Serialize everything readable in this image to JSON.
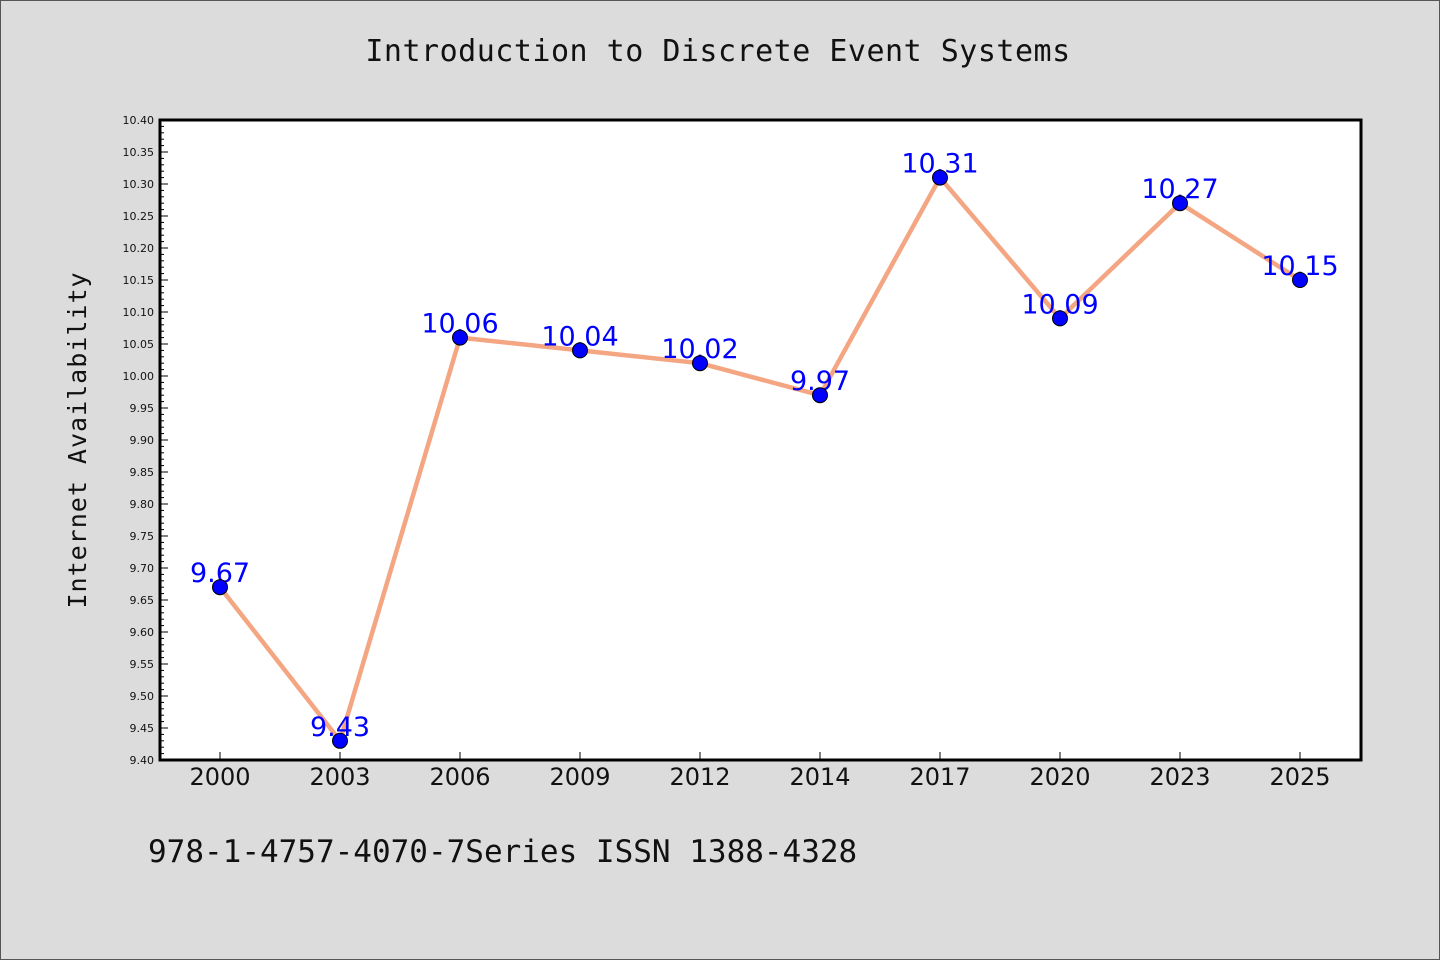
{
  "chart_data": {
    "type": "line",
    "title": "Introduction to Discrete Event Systems",
    "xlabel": "",
    "ylabel": "Internet Availability",
    "categories": [
      "2000",
      "2003",
      "2006",
      "2009",
      "2012",
      "2014",
      "2017",
      "2020",
      "2023",
      "2025"
    ],
    "values": [
      9.67,
      9.43,
      10.06,
      10.04,
      10.02,
      9.97,
      10.31,
      10.09,
      10.27,
      10.15
    ],
    "data_labels": [
      "9.67",
      "9.43",
      "10.06",
      "10.04",
      "10.02",
      "9.97",
      "10.31",
      "10.09",
      "10.27",
      "10.15"
    ],
    "ylim": [
      9.4,
      10.4
    ],
    "yticks": [
      "9.40",
      "9.45",
      "9.50",
      "9.55",
      "9.60",
      "9.65",
      "9.70",
      "9.75",
      "9.80",
      "9.85",
      "9.90",
      "9.95",
      "10.00",
      "10.05",
      "10.10",
      "10.15",
      "10.20",
      "10.25",
      "10.30",
      "10.35",
      "10.40"
    ],
    "grid": false,
    "line_color": "#f4a582",
    "marker_color": "#0000ff",
    "label_color": "#0000ff"
  },
  "footer": {
    "text": "978-1-4757-4070-7Series ISSN 1388-4328"
  }
}
